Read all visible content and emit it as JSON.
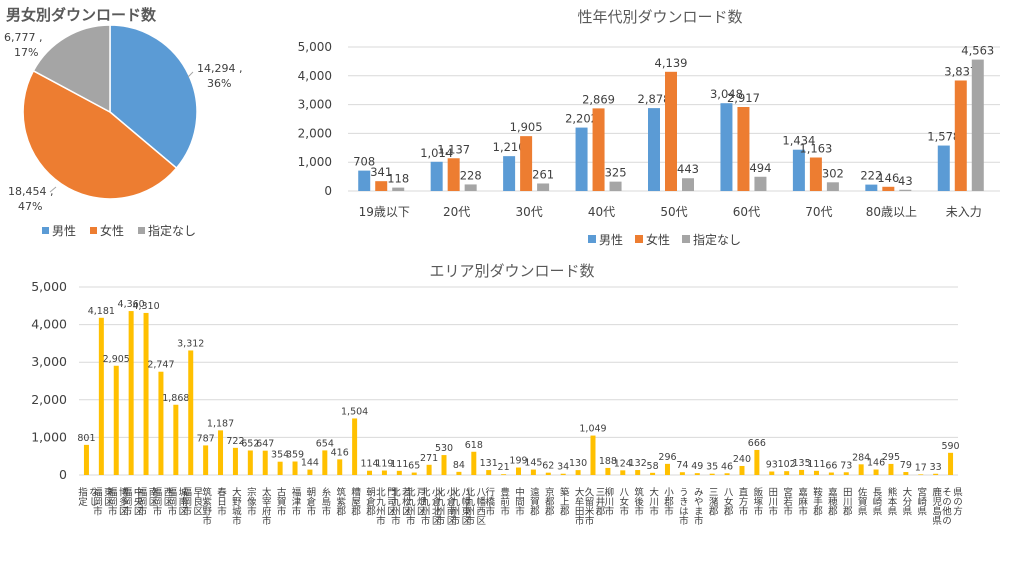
{
  "colors": {
    "male": "#5b9bd5",
    "female": "#ed7d31",
    "unspecified": "#a5a5a5",
    "area": "#ffc000",
    "grid": "#d9d9d9",
    "text": "#404040",
    "title": "#595959"
  },
  "chart_data": [
    {
      "type": "pie",
      "title": "男女別ダウンロード数",
      "categories": [
        "男性",
        "女性",
        "指定なし"
      ],
      "values": [
        14294,
        18454,
        6777
      ],
      "data_labels": [
        "14,294 ,",
        "18,454 ,",
        "6,777 ,"
      ],
      "percent_labels": [
        "36%",
        "47%",
        "17%"
      ],
      "legend_position": "bottom-left"
    },
    {
      "type": "bar",
      "title": "性年代別ダウンロード数",
      "categories": [
        "19歳以下",
        "20代",
        "30代",
        "40代",
        "50代",
        "60代",
        "70代",
        "80歳以上",
        "未入力"
      ],
      "series": [
        {
          "name": "男性",
          "values": [
            708,
            1014,
            1210,
            2202,
            2878,
            3048,
            1434,
            222,
            1578
          ],
          "labels": [
            "708",
            "1,014",
            "1,210",
            "2,202",
            "2,878",
            "3,048",
            "1,434",
            "222",
            "1,578"
          ]
        },
        {
          "name": "女性",
          "values": [
            341,
            1137,
            1905,
            2869,
            4139,
            2917,
            1163,
            146,
            3837
          ],
          "labels": [
            "341",
            "1,137",
            "1,905",
            "2,869",
            "4,139",
            "2,917",
            "1,163",
            "146",
            "3,837"
          ]
        },
        {
          "name": "指定なし",
          "values": [
            118,
            228,
            261,
            325,
            443,
            494,
            302,
            43,
            4563
          ],
          "labels": [
            "118",
            "228",
            "261",
            "325",
            "443",
            "494",
            "302",
            "43",
            "4,563"
          ]
        }
      ],
      "ylim": [
        0,
        5000
      ],
      "yticks": [
        0,
        1000,
        2000,
        3000,
        4000,
        5000
      ],
      "ytick_labels": [
        "0",
        "1,000",
        "2,000",
        "3,000",
        "4,000",
        "5,000"
      ],
      "grid": true,
      "legend_position": "bottom"
    },
    {
      "type": "bar",
      "title": "エリア別ダウンロード数",
      "categories": [
        "指定なし",
        "福岡市東区",
        "福岡市博多区",
        "福岡市中央区",
        "福岡市南区",
        "福岡市西区",
        "福岡市城南区",
        "福岡市早良区",
        "筑紫野市",
        "春日市",
        "大野城市",
        "宗像市",
        "太宰府市",
        "古賀市",
        "福津市",
        "朝倉市",
        "糸島市",
        "筑紫郡",
        "糟屋郡",
        "朝倉郡",
        "北九州市門司区",
        "北九州市若松区",
        "北九州市戸畑区",
        "北九州市小倉北区",
        "北九州市小倉南区",
        "北九州市八幡東区",
        "北九州市八幡西区",
        "行橋市",
        "豊前市",
        "中間市",
        "遠賀郡",
        "京都郡",
        "築上郡",
        "大牟田市",
        "久留米市三井郡",
        "柳川市",
        "八女市",
        "筑後市",
        "大川市",
        "小郡市",
        "うきは市",
        "みやま市",
        "三潴郡",
        "八女郡",
        "直方市",
        "飯塚市",
        "田川市",
        "宮若市",
        "嘉麻市",
        "鞍手郡",
        "嘉穂郡",
        "田川郡",
        "佐賀県",
        "長崎県",
        "熊本県",
        "大分県",
        "宮崎県",
        "鹿児島県",
        "その他の県の方"
      ],
      "category_label_lines": [
        [
          "指定",
          "なし"
        ],
        [
          "福岡市",
          "東区"
        ],
        [
          "福岡市",
          "博多区"
        ],
        [
          "福岡市",
          "中央区"
        ],
        [
          "福岡市",
          "南区"
        ],
        [
          "福岡市",
          "西区"
        ],
        [
          "福岡市",
          "城南区"
        ],
        [
          "福岡市",
          "早良区"
        ],
        [
          "筑紫野市"
        ],
        [
          "春日市"
        ],
        [
          "大野城市"
        ],
        [
          "宗像市"
        ],
        [
          "太宰府市"
        ],
        [
          "古賀市"
        ],
        [
          "福津市"
        ],
        [
          "朝倉市"
        ],
        [
          "糸島市"
        ],
        [
          "筑紫郡"
        ],
        [
          "糟屋郡"
        ],
        [
          "朝倉郡"
        ],
        [
          "北九州市",
          "門司区"
        ],
        [
          "北九州市",
          "若松区"
        ],
        [
          "北九州市",
          "戸畑区"
        ],
        [
          "北九州市",
          "小倉北区"
        ],
        [
          "北九州市",
          "小倉南区"
        ],
        [
          "北九州市",
          "八幡東区"
        ],
        [
          "北九州市",
          "八幡西区"
        ],
        [
          "行橋市"
        ],
        [
          "豊前市"
        ],
        [
          "中間市"
        ],
        [
          "遠賀郡"
        ],
        [
          "京都郡"
        ],
        [
          "築上郡"
        ],
        [
          "大牟田市"
        ],
        [
          "久留米市",
          "三井郡"
        ],
        [
          "柳川市"
        ],
        [
          "八女市"
        ],
        [
          "筑後市"
        ],
        [
          "大川市"
        ],
        [
          "小郡市"
        ],
        [
          "うきは市"
        ],
        [
          "みやま市"
        ],
        [
          "三潴郡"
        ],
        [
          "八女郡"
        ],
        [
          "直方市"
        ],
        [
          "飯塚市"
        ],
        [
          "田川市"
        ],
        [
          "宮若市"
        ],
        [
          "嘉麻市"
        ],
        [
          "鞍手郡"
        ],
        [
          "嘉穂郡"
        ],
        [
          "田川郡"
        ],
        [
          "佐賀県"
        ],
        [
          "長崎県"
        ],
        [
          "熊本県"
        ],
        [
          "大分県"
        ],
        [
          "宮崎県"
        ],
        [
          "鹿児島県"
        ],
        [
          "その他の",
          "県の方"
        ]
      ],
      "values": [
        801,
        4181,
        2905,
        4360,
        4310,
        2747,
        1868,
        3312,
        787,
        1187,
        722,
        652,
        647,
        354,
        359,
        144,
        654,
        416,
        1504,
        114,
        119,
        111,
        65,
        271,
        530,
        84,
        618,
        131,
        21,
        199,
        145,
        62,
        34,
        130,
        1049,
        188,
        124,
        132,
        58,
        296,
        74,
        49,
        35,
        46,
        240,
        666,
        93,
        102,
        135,
        111,
        66,
        73,
        284,
        146,
        295,
        79,
        17,
        33,
        590
      ],
      "labels": [
        "801",
        "4,181",
        "2,905",
        "4,360",
        "4,310",
        "2,747",
        "1,868",
        "3,312",
        "787",
        "1,187",
        "722",
        "652",
        "647",
        "354",
        "359",
        "144",
        "654",
        "416",
        "1,504",
        "114",
        "119",
        "111",
        "65",
        "271",
        "530",
        "84",
        "618",
        "131",
        "21",
        "199",
        "145",
        "62",
        "34",
        "130",
        "1,049",
        "188",
        "124",
        "132",
        "58",
        "296",
        "74",
        "49",
        "35",
        "46",
        "240",
        "666",
        "93",
        "102",
        "135",
        "111",
        "66",
        "73",
        "284",
        "146",
        "295",
        "79",
        "17",
        "33",
        "590"
      ],
      "ylim": [
        0,
        5000
      ],
      "yticks": [
        0,
        1000,
        2000,
        3000,
        4000,
        5000
      ],
      "ytick_labels": [
        "0",
        "1,000",
        "2,000",
        "3,000",
        "4,000",
        "5,000"
      ],
      "grid": true
    }
  ]
}
